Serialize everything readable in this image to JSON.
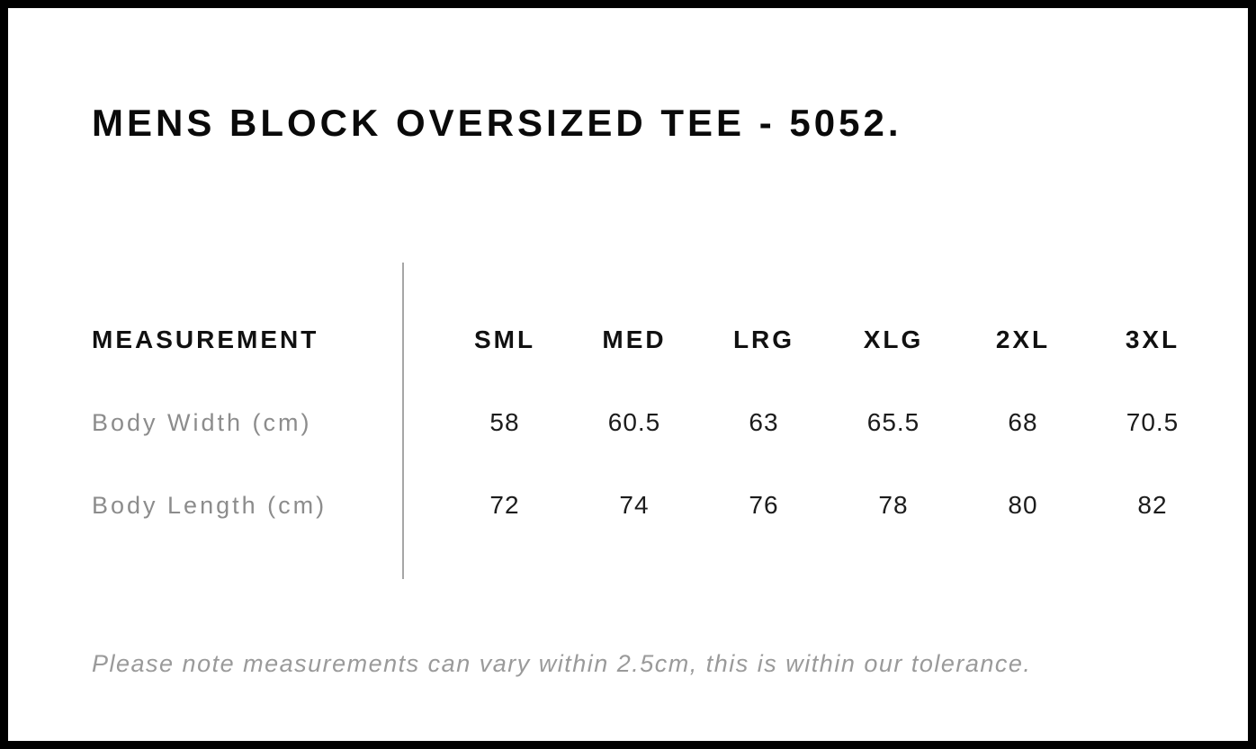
{
  "page": {
    "title": "MENS BLOCK OVERSIZED TEE - 5052."
  },
  "table": {
    "headers": [
      "MEASUREMENT",
      "SML",
      "MED",
      "LRG",
      "XLG",
      "2XL",
      "3XL"
    ],
    "rows": [
      {
        "label": "Body Width (cm)",
        "values": [
          "58",
          "60.5",
          "63",
          "65.5",
          "68",
          "70.5"
        ]
      },
      {
        "label": "Body Length (cm)",
        "values": [
          "72",
          "74",
          "76",
          "78",
          "80",
          "82"
        ]
      }
    ]
  },
  "note": "Please note measurements can vary within 2.5cm, this is within our tolerance.",
  "colors": {
    "frame_border": "#000000",
    "background": "#ffffff",
    "heading_text": "#111111",
    "row_label_gray": "#8c8c8c",
    "note_gray": "#9a9a9a",
    "divider_gray": "#a6a6a6"
  },
  "chart_data": {
    "type": "table",
    "title": "MENS BLOCK OVERSIZED TEE - 5052.",
    "columns": [
      "MEASUREMENT",
      "SML",
      "MED",
      "LRG",
      "XLG",
      "2XL",
      "3XL"
    ],
    "rows": [
      [
        "Body Width (cm)",
        58,
        60.5,
        63,
        65.5,
        68,
        70.5
      ],
      [
        "Body Length (cm)",
        72,
        74,
        76,
        78,
        80,
        82
      ]
    ],
    "note": "Please note measurements can vary within 2.5cm, this is within our tolerance."
  }
}
